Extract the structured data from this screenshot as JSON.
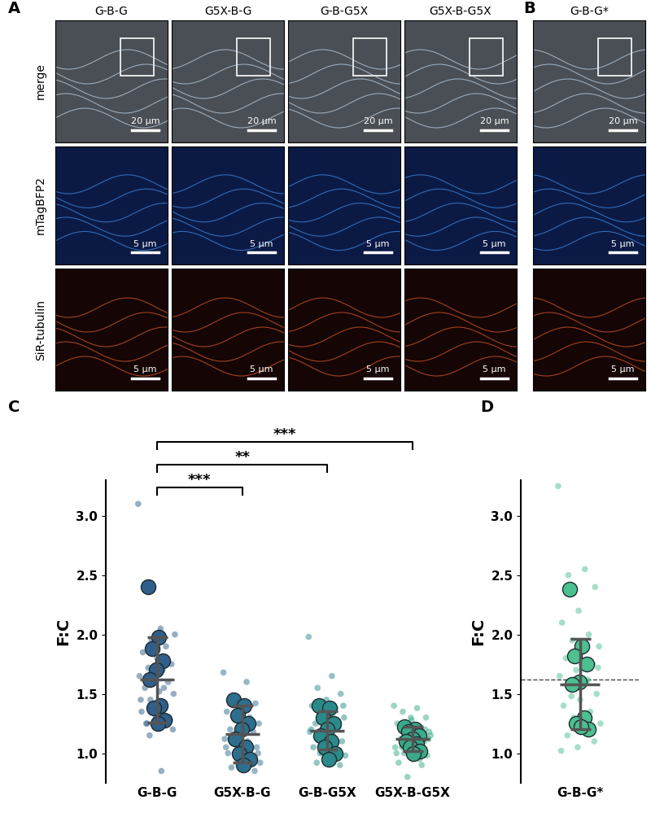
{
  "panels": {
    "A": {
      "label": "A",
      "columns": [
        "G-B-G",
        "G5X-B-G",
        "G-B-G5X",
        "G5X-B-G5X"
      ]
    },
    "B": {
      "label": "B",
      "columns": [
        "G-B-G*"
      ]
    },
    "rows": [
      "merge",
      "mTagBFP2",
      "SiR-tubulin"
    ],
    "scale_bars": [
      "20 µm",
      "5 µm",
      "5 µm"
    ]
  },
  "chart_data": [
    {
      "panel": "C",
      "type": "scatter",
      "ylabel": "F:C",
      "categories": [
        "G-B-G",
        "G5X-B-G",
        "G-B-G5X",
        "G5X-B-G5X"
      ],
      "ylim": [
        0.75,
        3.3
      ],
      "yticks": [
        1.0,
        1.5,
        2.0,
        2.5,
        3.0
      ],
      "groups": [
        {
          "color": "#2f5f8a",
          "cell_values": [
            3.1,
            0.85,
            1.25,
            1.28,
            1.3,
            1.35,
            1.4,
            1.45,
            1.5,
            1.52,
            1.55,
            1.6,
            1.62,
            1.65,
            1.7,
            1.72,
            1.75,
            1.8,
            1.85,
            1.9,
            1.95,
            2.0,
            2.05,
            1.25,
            1.3,
            1.4,
            1.45,
            1.55,
            1.15,
            1.2
          ],
          "replicate_values": [
            2.4,
            1.98,
            1.88,
            1.78,
            1.7,
            1.62,
            1.4,
            1.38,
            1.28,
            1.25
          ],
          "mean": 1.62,
          "sd": 0.36
        },
        {
          "color": "#2e6e8e",
          "cell_values": [
            1.68,
            1.6,
            1.45,
            1.42,
            1.38,
            1.35,
            1.3,
            1.28,
            1.25,
            1.22,
            1.2,
            1.18,
            1.15,
            1.12,
            1.1,
            1.08,
            1.05,
            1.02,
            1.0,
            0.98,
            0.95,
            0.92,
            0.9,
            0.88,
            0.85,
            1.12,
            1.05,
            1.25,
            1.32,
            1.0
          ],
          "replicate_values": [
            1.45,
            1.4,
            1.32,
            1.25,
            1.2,
            1.12,
            1.05,
            1.0,
            0.95,
            0.9
          ],
          "mean": 1.16,
          "sd": 0.24
        },
        {
          "color": "#2a8a8a",
          "cell_values": [
            1.98,
            1.65,
            1.55,
            1.5,
            1.45,
            1.4,
            1.38,
            1.35,
            1.3,
            1.28,
            1.25,
            1.22,
            1.2,
            1.18,
            1.15,
            1.12,
            1.1,
            1.08,
            1.05,
            1.02,
            1.0,
            0.98,
            0.95,
            0.92,
            0.9,
            1.3,
            1.2,
            1.1,
            1.0,
            1.4
          ],
          "replicate_values": [
            1.4,
            1.38,
            1.3,
            1.25,
            1.2,
            1.15,
            1.1,
            1.05,
            1.0,
            0.95
          ],
          "mean": 1.19,
          "sd": 0.16
        },
        {
          "color": "#3aaa8a",
          "cell_values": [
            1.4,
            1.38,
            1.35,
            1.3,
            1.28,
            1.25,
            1.22,
            1.2,
            1.18,
            1.15,
            1.12,
            1.1,
            1.08,
            1.05,
            1.02,
            1.0,
            0.98,
            0.95,
            0.92,
            0.9,
            0.8,
            1.15,
            1.1,
            1.05,
            1.2,
            1.3,
            1.0,
            0.95,
            1.25,
            1.12
          ],
          "replicate_values": [
            1.22,
            1.2,
            1.18,
            1.15,
            1.12,
            1.1,
            1.08,
            1.05,
            1.02,
            1.0
          ],
          "mean": 1.12,
          "sd": 0.1
        }
      ],
      "significance": [
        {
          "from": "G-B-G",
          "to": "G5X-B-G5X",
          "y": 3.62,
          "label": "***"
        },
        {
          "from": "G-B-G",
          "to": "G-B-G5X",
          "y": 3.43,
          "label": "**"
        },
        {
          "from": "G-B-G",
          "to": "G5X-B-G",
          "y": 3.24,
          "label": "***"
        }
      ]
    },
    {
      "panel": "D",
      "type": "scatter",
      "ylabel": "F:C",
      "categories": [
        "G-B-G*"
      ],
      "ylim": [
        0.75,
        3.3
      ],
      "yticks": [
        1.0,
        1.5,
        2.0,
        2.5,
        3.0
      ],
      "reference_line": 1.62,
      "groups": [
        {
          "color": "#4cc090",
          "cell_values": [
            3.25,
            2.55,
            2.5,
            2.4,
            2.2,
            2.1,
            2.0,
            1.95,
            1.9,
            1.85,
            1.8,
            1.75,
            1.7,
            1.65,
            1.6,
            1.55,
            1.5,
            1.45,
            1.4,
            1.35,
            1.3,
            1.25,
            1.2,
            1.15,
            1.1,
            1.05,
            1.02,
            1.62,
            1.48,
            1.72
          ],
          "replicate_values": [
            2.38,
            1.9,
            1.82,
            1.75,
            1.6,
            1.58,
            1.3,
            1.25,
            1.2,
            1.22
          ],
          "mean": 1.58,
          "sd": 0.38
        }
      ]
    }
  ]
}
